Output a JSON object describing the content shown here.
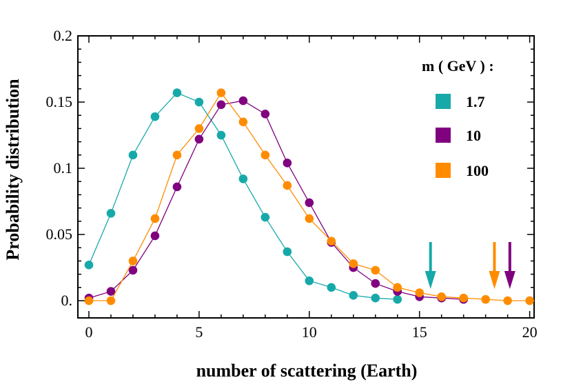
{
  "chart_data": {
    "type": "line",
    "xlabel": "number of scattering (Earth)",
    "ylabel": "Probability distribution",
    "xlim": [
      -0.5,
      20.2
    ],
    "ylim": [
      -0.013,
      0.2
    ],
    "xticks": [
      0,
      5,
      10,
      15,
      20
    ],
    "xtick_labels": [
      "0",
      "5",
      "10",
      "15",
      "20"
    ],
    "yticks": [
      0,
      0.05,
      0.1,
      0.15,
      0.2
    ],
    "ytick_labels": [
      "0.",
      "0.05",
      "0.1",
      "0.15",
      "0.2"
    ],
    "grid": false,
    "legend_title": "m ( GeV ) :",
    "legend_position": "top-right",
    "series": [
      {
        "name": "1.7",
        "color": "#17a9a9",
        "points": [
          [
            0,
            0.027
          ],
          [
            1,
            0.066
          ],
          [
            2,
            0.11
          ],
          [
            3,
            0.139
          ],
          [
            4,
            0.157
          ],
          [
            5,
            0.15
          ],
          [
            6,
            0.125
          ],
          [
            7,
            0.092
          ],
          [
            8,
            0.063
          ],
          [
            9,
            0.037
          ],
          [
            10,
            0.015
          ],
          [
            11,
            0.01
          ],
          [
            12,
            0.004
          ],
          [
            13,
            0.002
          ],
          [
            14,
            0.001
          ]
        ],
        "arrow_x": 15.5
      },
      {
        "name": "10",
        "color": "#800080",
        "points": [
          [
            0,
            0.002
          ],
          [
            1,
            0.007
          ],
          [
            2,
            0.023
          ],
          [
            3,
            0.049
          ],
          [
            4,
            0.086
          ],
          [
            5,
            0.122
          ],
          [
            6,
            0.148
          ],
          [
            7,
            0.151
          ],
          [
            8,
            0.141
          ],
          [
            9,
            0.104
          ],
          [
            10,
            0.074
          ],
          [
            11,
            0.044
          ],
          [
            12,
            0.025
          ],
          [
            13,
            0.013
          ],
          [
            14,
            0.007
          ],
          [
            15,
            0.003
          ],
          [
            16,
            0.002
          ],
          [
            17,
            0.001
          ]
        ],
        "arrow_x": 19.1
      },
      {
        "name": "100",
        "color": "#ff8c00",
        "points": [
          [
            0,
            0.0
          ],
          [
            1,
            0.0
          ],
          [
            2,
            0.03
          ],
          [
            3,
            0.062
          ],
          [
            4,
            0.11
          ],
          [
            5,
            0.13
          ],
          [
            6,
            0.157
          ],
          [
            7,
            0.135
          ],
          [
            8,
            0.11
          ],
          [
            9,
            0.087
          ],
          [
            10,
            0.062
          ],
          [
            11,
            0.045
          ],
          [
            12,
            0.028
          ],
          [
            13,
            0.023
          ],
          [
            14,
            0.01
          ],
          [
            15,
            0.006
          ],
          [
            16,
            0.003
          ],
          [
            17,
            0.002
          ],
          [
            18,
            0.001
          ],
          [
            19,
            0.0
          ],
          [
            20,
            0.0
          ]
        ],
        "arrow_x": 18.4
      }
    ]
  }
}
